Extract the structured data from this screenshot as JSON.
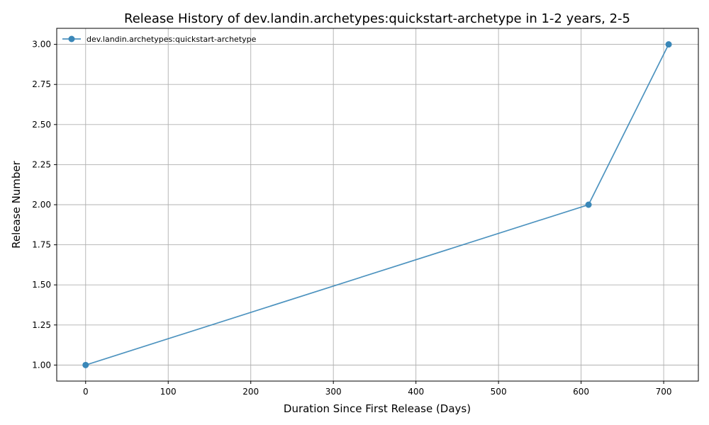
{
  "chart_data": {
    "type": "line",
    "title": "Release History of dev.landin.archetypes:quickstart-archetype in 1-2 years, 2-5",
    "xlabel": "Duration Since First Release (Days)",
    "ylabel": "Release Number",
    "xlim": [
      -35,
      742
    ],
    "ylim": [
      0.9,
      3.1
    ],
    "xticks": [
      0,
      100,
      200,
      300,
      400,
      500,
      600,
      700
    ],
    "xtick_labels": [
      "0",
      "100",
      "200",
      "300",
      "400",
      "500",
      "600",
      "700"
    ],
    "yticks": [
      1.0,
      1.25,
      1.5,
      1.75,
      2.0,
      2.25,
      2.5,
      2.75,
      3.0
    ],
    "ytick_labels": [
      "1.00",
      "1.25",
      "1.50",
      "1.75",
      "2.00",
      "2.25",
      "2.50",
      "2.75",
      "3.00"
    ],
    "grid": true,
    "legend_position": "top-left",
    "series": [
      {
        "name": "dev.landin.archetypes:quickstart-archetype",
        "color": "#3a87b8",
        "marker": "circle",
        "x": [
          0,
          609,
          706
        ],
        "y": [
          1,
          2,
          3
        ]
      }
    ]
  }
}
